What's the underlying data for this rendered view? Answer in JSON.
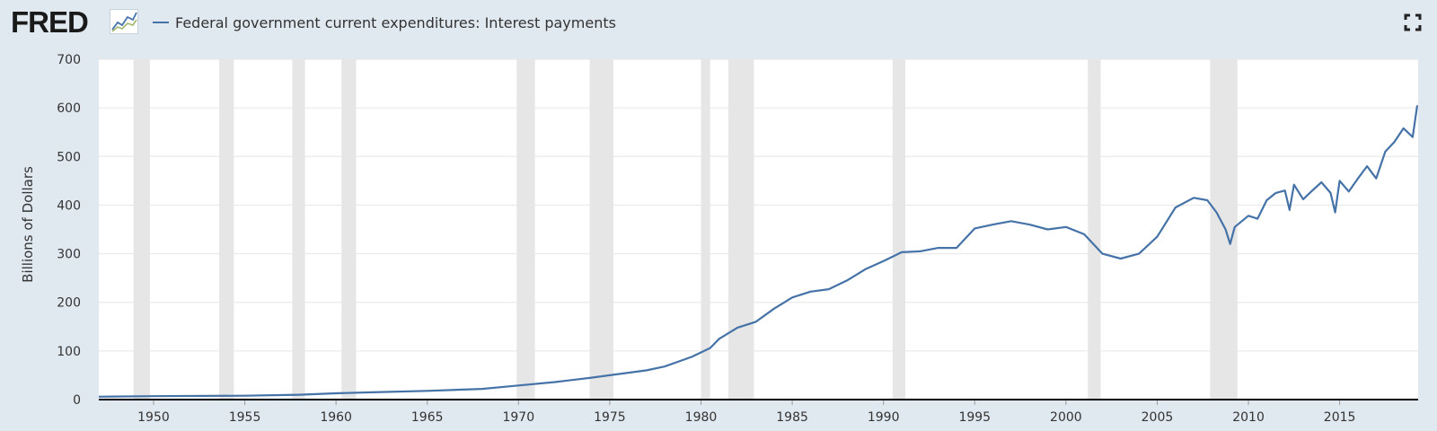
{
  "header": {
    "logo_text": "FRED",
    "fullscreen_icon": "fullscreen-icon"
  },
  "chart_data": {
    "type": "line",
    "title": "",
    "xlabel": "",
    "ylabel": "Billions of Dollars",
    "ylim": [
      0,
      700
    ],
    "xlim": [
      1947.0,
      2019.3
    ],
    "y_ticks": [
      0,
      100,
      200,
      300,
      400,
      500,
      600,
      700
    ],
    "x_ticks": [
      1950,
      1955,
      1960,
      1965,
      1970,
      1975,
      1980,
      1985,
      1990,
      1995,
      2000,
      2005,
      2010,
      2015
    ],
    "grid": true,
    "legend_position": "top-left",
    "series_color": "#4572a7",
    "recession_shading_color": "#e6e6e6",
    "recessions": [
      [
        1948.9,
        1949.8
      ],
      [
        1953.6,
        1954.4
      ],
      [
        1957.6,
        1958.3
      ],
      [
        1960.3,
        1961.1
      ],
      [
        1969.9,
        1970.9
      ],
      [
        1973.9,
        1975.2
      ],
      [
        1980.0,
        1980.5
      ],
      [
        1981.5,
        1982.9
      ],
      [
        1990.5,
        1991.2
      ],
      [
        2001.2,
        2001.9
      ],
      [
        2007.9,
        2009.4
      ]
    ],
    "series": [
      {
        "name": "Federal government current expenditures: Interest payments",
        "x": [
          1947.0,
          1950.0,
          1955.0,
          1958.0,
          1960.0,
          1962.0,
          1965.0,
          1968.0,
          1970.0,
          1972.0,
          1974.0,
          1975.0,
          1977.0,
          1978.0,
          1979.5,
          1980.5,
          1981.0,
          1982.0,
          1983.0,
          1984.0,
          1985.0,
          1986.0,
          1987.0,
          1988.0,
          1989.0,
          1990.0,
          1991.0,
          1992.0,
          1993.0,
          1994.0,
          1995.0,
          1996.0,
          1997.0,
          1998.0,
          1999.0,
          2000.0,
          2001.0,
          2002.0,
          2003.0,
          2004.0,
          2005.0,
          2006.0,
          2007.0,
          2007.75,
          2008.25,
          2008.75,
          2009.0,
          2009.25,
          2010.0,
          2010.5,
          2011.0,
          2011.5,
          2012.0,
          2012.25,
          2012.5,
          2013.0,
          2013.5,
          2014.0,
          2014.5,
          2014.75,
          2015.0,
          2015.5,
          2016.0,
          2016.5,
          2017.0,
          2017.5,
          2018.0,
          2018.5,
          2019.0,
          2019.25
        ],
        "values": [
          6,
          7,
          8,
          10,
          13,
          15,
          18,
          22,
          29,
          36,
          45,
          50,
          60,
          68,
          88,
          106,
          125,
          148,
          160,
          187,
          210,
          222,
          227,
          245,
          268,
          285,
          303,
          305,
          312,
          312,
          352,
          360,
          367,
          360,
          350,
          355,
          340,
          300,
          290,
          300,
          335,
          395,
          415,
          410,
          385,
          350,
          320,
          355,
          378,
          372,
          410,
          425,
          430,
          390,
          442,
          412,
          430,
          447,
          425,
          385,
          450,
          428,
          455,
          480,
          455,
          510,
          530,
          558,
          540,
          605
        ]
      }
    ]
  }
}
